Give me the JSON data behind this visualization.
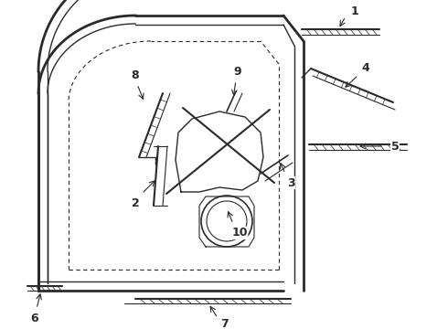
{
  "bg_color": "#ffffff",
  "line_color": "#2a2a2a",
  "figsize": [
    4.9,
    3.6
  ],
  "dpi": 100,
  "xlim": [
    0,
    490
  ],
  "ylim": [
    0,
    360
  ]
}
